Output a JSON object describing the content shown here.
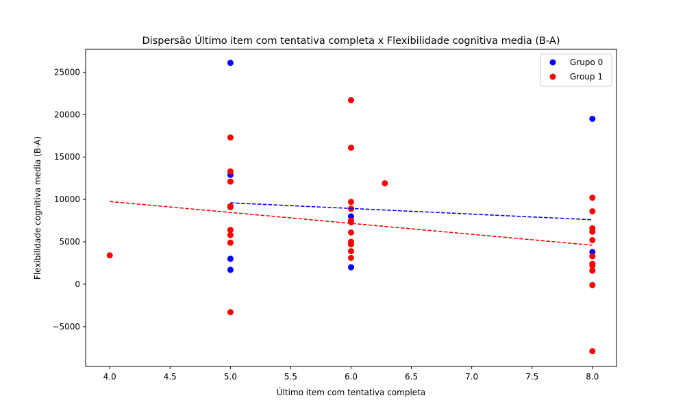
{
  "chart_data": {
    "type": "scatter",
    "title": "Dispersão Último item com tentativa completa x Flexibilidade cognitiva media (B-A)",
    "xlabel": "Último item com tentativa completa",
    "ylabel": "Flexibilidade cognitiva media (B-A)",
    "xlim": [
      3.8,
      8.2
    ],
    "ylim": [
      -9700,
      27700
    ],
    "x_ticks": [
      4.0,
      4.5,
      5.0,
      5.5,
      6.0,
      6.5,
      7.0,
      7.5,
      8.0
    ],
    "x_tick_labels": [
      "4.0",
      "4.5",
      "5.0",
      "5.5",
      "6.0",
      "6.5",
      "7.0",
      "7.5",
      "8.0"
    ],
    "y_ticks": [
      -5000,
      0,
      5000,
      10000,
      15000,
      20000,
      25000
    ],
    "y_tick_labels": [
      "−5000",
      "0",
      "5000",
      "10000",
      "15000",
      "20000",
      "25000"
    ],
    "grid": false,
    "legend_position": "top-right",
    "series": [
      {
        "name": "Grupo 0",
        "color": "#0000ff",
        "points": [
          [
            5,
            26100
          ],
          [
            5,
            12900
          ],
          [
            5,
            3000
          ],
          [
            5,
            1700
          ],
          [
            6,
            8900
          ],
          [
            6,
            8000
          ],
          [
            6,
            2000
          ],
          [
            8,
            19500
          ],
          [
            8,
            3800
          ]
        ],
        "trend": {
          "x": [
            5.0,
            8.0
          ],
          "y": [
            9600,
            7600
          ]
        }
      },
      {
        "name": "Group 1",
        "color": "#ff0000",
        "points": [
          [
            4,
            3400
          ],
          [
            5,
            17300
          ],
          [
            5,
            13300
          ],
          [
            5,
            12100
          ],
          [
            5,
            9200
          ],
          [
            5,
            9100
          ],
          [
            5,
            6400
          ],
          [
            5,
            5800
          ],
          [
            5,
            4900
          ],
          [
            5,
            -3300
          ],
          [
            6,
            21700
          ],
          [
            6,
            16100
          ],
          [
            6,
            9700
          ],
          [
            6,
            8900
          ],
          [
            6,
            7500
          ],
          [
            6,
            7300
          ],
          [
            6,
            6100
          ],
          [
            6,
            5000
          ],
          [
            6,
            4700
          ],
          [
            6,
            3900
          ],
          [
            6,
            3100
          ],
          [
            6.28,
            11900
          ],
          [
            8,
            10200
          ],
          [
            8,
            8600
          ],
          [
            8,
            6600
          ],
          [
            8,
            6200
          ],
          [
            8,
            5200
          ],
          [
            8,
            3300
          ],
          [
            8,
            2400
          ],
          [
            8,
            2200
          ],
          [
            8,
            1600
          ],
          [
            8,
            -100
          ],
          [
            8,
            -7900
          ]
        ],
        "trend": {
          "x": [
            4.0,
            8.0
          ],
          "y": [
            9750,
            4600
          ]
        }
      }
    ]
  }
}
